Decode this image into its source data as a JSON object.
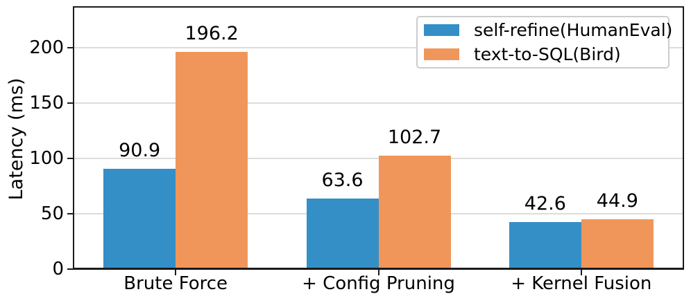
{
  "chart_data": {
    "type": "bar",
    "title": "",
    "categories": [
      "Brute Force",
      "+ Config Pruning",
      "+ Kernel Fusion"
    ],
    "series": [
      {
        "name": "self-refine(HumanEval)",
        "color": "#348fc7",
        "values": [
          90.9,
          63.6,
          42.6
        ]
      },
      {
        "name": "text-to-SQL(Bird)",
        "color": "#f0965a",
        "values": [
          196.2,
          102.7,
          44.9
        ]
      }
    ],
    "value_labels": [
      [
        "90.9",
        "63.6",
        "42.6"
      ],
      [
        "196.2",
        "102.7",
        "44.9"
      ]
    ],
    "xlabel": "",
    "ylabel": "Latency (ms)",
    "yticks": [
      0,
      50,
      100,
      150,
      200
    ],
    "ytick_labels": [
      "0",
      "50",
      "100",
      "150",
      "200"
    ],
    "ylim": [
      0,
      236.25
    ],
    "grid": true,
    "legend_position": "upper right"
  },
  "colors": {
    "grid": "#dcdcdc",
    "spine": "#1a1a1a",
    "tick": "#1a1a1a",
    "text": "#000000",
    "legend_border": "#cccccc",
    "background": "#ffffff"
  }
}
